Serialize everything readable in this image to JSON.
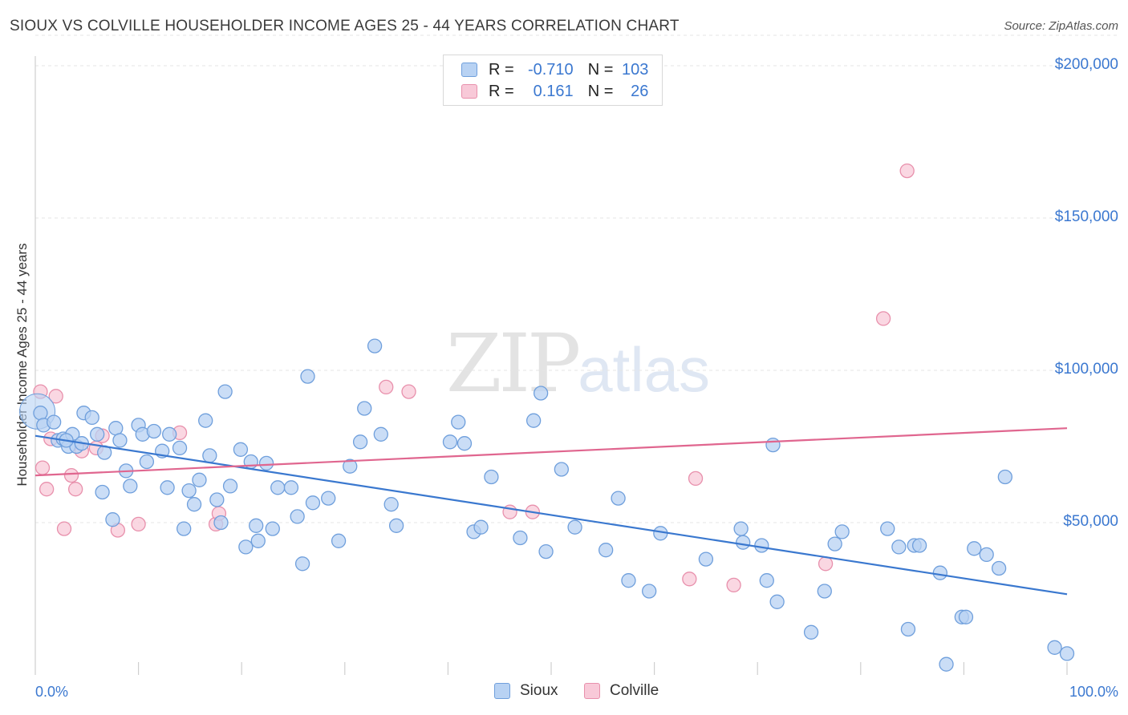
{
  "header": {
    "title": "SIOUX VS COLVILLE HOUSEHOLDER INCOME AGES 25 - 44 YEARS CORRELATION CHART",
    "source": "Source: ZipAtlas.com"
  },
  "watermark": {
    "zip": "ZIP",
    "atlas": "atlas"
  },
  "legend": {
    "rows": [
      {
        "r_label": "R = ",
        "r_value": "-0.710",
        "n_label": "N = ",
        "n_value": "103",
        "color": "#a9c8f0"
      },
      {
        "r_label": "R = ",
        "r_value": "0.161",
        "n_label": "N = ",
        "n_value": "26",
        "color": "#f4b8ca"
      }
    ]
  },
  "bottom_legend": [
    "Sioux",
    "Colville"
  ],
  "x_axis_labels": {
    "left": "0.0%",
    "right": "100.0%"
  },
  "y_axis_labels": [
    "$200,000",
    "$150,000",
    "$100,000",
    "$50,000"
  ],
  "colors": {
    "sioux_fill": "#b8d2f3",
    "sioux_stroke": "#6f9fdc",
    "sioux_line": "#3a78cf",
    "colville_fill": "#f8c9d8",
    "colville_stroke": "#e890ac",
    "colville_line": "#e0668f",
    "grid": "#e4e4e4",
    "axis_text": "#3b78d0"
  },
  "chart_data": {
    "type": "scatter",
    "title": "SIOUX VS COLVILLE HOUSEHOLDER INCOME AGES 25 - 44 YEARS CORRELATION CHART",
    "xlabel": "",
    "ylabel": "Householder Income Ages 25 - 44 years",
    "xlim": [
      0,
      100
    ],
    "ylim": [
      0,
      210000
    ],
    "y_ticks": [
      50000,
      100000,
      150000,
      200000
    ],
    "x_tick_labels": [
      "0.0%",
      "100.0%"
    ],
    "grid": "horizontal dashed",
    "legend_position": "top-center",
    "series": [
      {
        "name": "Sioux",
        "r": -0.71,
        "n": 103,
        "trend": [
          [
            0,
            78500
          ],
          [
            100,
            26500
          ]
        ],
        "points": [
          [
            0.5,
            86000
          ],
          [
            0.8,
            82000
          ],
          [
            1.8,
            83000
          ],
          [
            2.2,
            77000
          ],
          [
            2.7,
            77500
          ],
          [
            3.2,
            75000
          ],
          [
            3.6,
            79000
          ],
          [
            4.0,
            75000
          ],
          [
            4.5,
            76000
          ],
          [
            4.7,
            86000
          ],
          [
            5.5,
            84500
          ],
          [
            6.0,
            79000
          ],
          [
            6.5,
            60000
          ],
          [
            6.7,
            73000
          ],
          [
            7.5,
            51000
          ],
          [
            7.8,
            81000
          ],
          [
            8.2,
            77000
          ],
          [
            8.8,
            67000
          ],
          [
            9.2,
            62000
          ],
          [
            10.0,
            82000
          ],
          [
            10.4,
            79000
          ],
          [
            10.8,
            70000
          ],
          [
            11.5,
            80000
          ],
          [
            12.3,
            73500
          ],
          [
            12.8,
            61500
          ],
          [
            13.0,
            79000
          ],
          [
            14.0,
            74500
          ],
          [
            14.4,
            48000
          ],
          [
            14.9,
            60500
          ],
          [
            15.4,
            56000
          ],
          [
            15.9,
            64000
          ],
          [
            16.5,
            83500
          ],
          [
            16.9,
            72000
          ],
          [
            17.6,
            57500
          ],
          [
            18.0,
            50000
          ],
          [
            18.4,
            93000
          ],
          [
            18.9,
            62000
          ],
          [
            19.9,
            74000
          ],
          [
            20.4,
            42000
          ],
          [
            20.9,
            70000
          ],
          [
            21.4,
            49000
          ],
          [
            21.6,
            44000
          ],
          [
            22.4,
            69500
          ],
          [
            23.0,
            48000
          ],
          [
            23.5,
            61500
          ],
          [
            24.8,
            61500
          ],
          [
            25.4,
            52000
          ],
          [
            25.9,
            36500
          ],
          [
            26.4,
            98000
          ],
          [
            26.9,
            56500
          ],
          [
            28.4,
            58000
          ],
          [
            29.4,
            44000
          ],
          [
            30.5,
            68500
          ],
          [
            31.5,
            76500
          ],
          [
            31.9,
            87500
          ],
          [
            32.9,
            108000
          ],
          [
            33.5,
            79000
          ],
          [
            34.5,
            56000
          ],
          [
            35.0,
            49000
          ],
          [
            40.2,
            76500
          ],
          [
            41.0,
            83000
          ],
          [
            41.6,
            76000
          ],
          [
            42.5,
            47000
          ],
          [
            43.2,
            48500
          ],
          [
            44.2,
            65000
          ],
          [
            47.0,
            45000
          ],
          [
            48.3,
            83500
          ],
          [
            49.0,
            92500
          ],
          [
            49.5,
            40500
          ],
          [
            51.0,
            67500
          ],
          [
            52.3,
            48500
          ],
          [
            55.3,
            41000
          ],
          [
            56.5,
            58000
          ],
          [
            57.5,
            31000
          ],
          [
            59.5,
            27500
          ],
          [
            60.6,
            46500
          ],
          [
            65.0,
            38000
          ],
          [
            68.4,
            48000
          ],
          [
            68.6,
            43500
          ],
          [
            70.4,
            42500
          ],
          [
            70.9,
            31000
          ],
          [
            71.5,
            75500
          ],
          [
            71.9,
            24000
          ],
          [
            75.2,
            14000
          ],
          [
            76.5,
            27500
          ],
          [
            77.5,
            43000
          ],
          [
            78.2,
            47000
          ],
          [
            82.6,
            48000
          ],
          [
            83.7,
            42000
          ],
          [
            84.6,
            15000
          ],
          [
            85.2,
            42500
          ],
          [
            85.7,
            42500
          ],
          [
            87.7,
            33500
          ],
          [
            88.3,
            3500
          ],
          [
            89.8,
            19000
          ],
          [
            90.2,
            19000
          ],
          [
            91.0,
            41500
          ],
          [
            92.2,
            39500
          ],
          [
            93.4,
            35000
          ],
          [
            94.0,
            65000
          ],
          [
            98.8,
            9000
          ],
          [
            100.0,
            7000
          ],
          [
            3.0,
            77000
          ]
        ]
      },
      {
        "name": "Colville",
        "r": 0.161,
        "n": 26,
        "trend": [
          [
            0,
            65500
          ],
          [
            100,
            81000
          ]
        ],
        "points": [
          [
            0.5,
            93000
          ],
          [
            0.7,
            68000
          ],
          [
            1.1,
            61000
          ],
          [
            1.5,
            77500
          ],
          [
            2.0,
            91500
          ],
          [
            2.8,
            48000
          ],
          [
            3.5,
            65500
          ],
          [
            3.9,
            61000
          ],
          [
            4.5,
            73500
          ],
          [
            5.9,
            74500
          ],
          [
            6.5,
            78500
          ],
          [
            8.0,
            47500
          ],
          [
            10.0,
            49500
          ],
          [
            14.0,
            79500
          ],
          [
            17.5,
            49500
          ],
          [
            17.8,
            53000
          ],
          [
            34.0,
            94500
          ],
          [
            36.2,
            93000
          ],
          [
            46.0,
            53500
          ],
          [
            48.2,
            53500
          ],
          [
            64.0,
            64500
          ],
          [
            63.4,
            31500
          ],
          [
            67.7,
            29500
          ],
          [
            76.6,
            36500
          ],
          [
            82.2,
            117000
          ],
          [
            84.5,
            165500
          ]
        ]
      }
    ]
  }
}
